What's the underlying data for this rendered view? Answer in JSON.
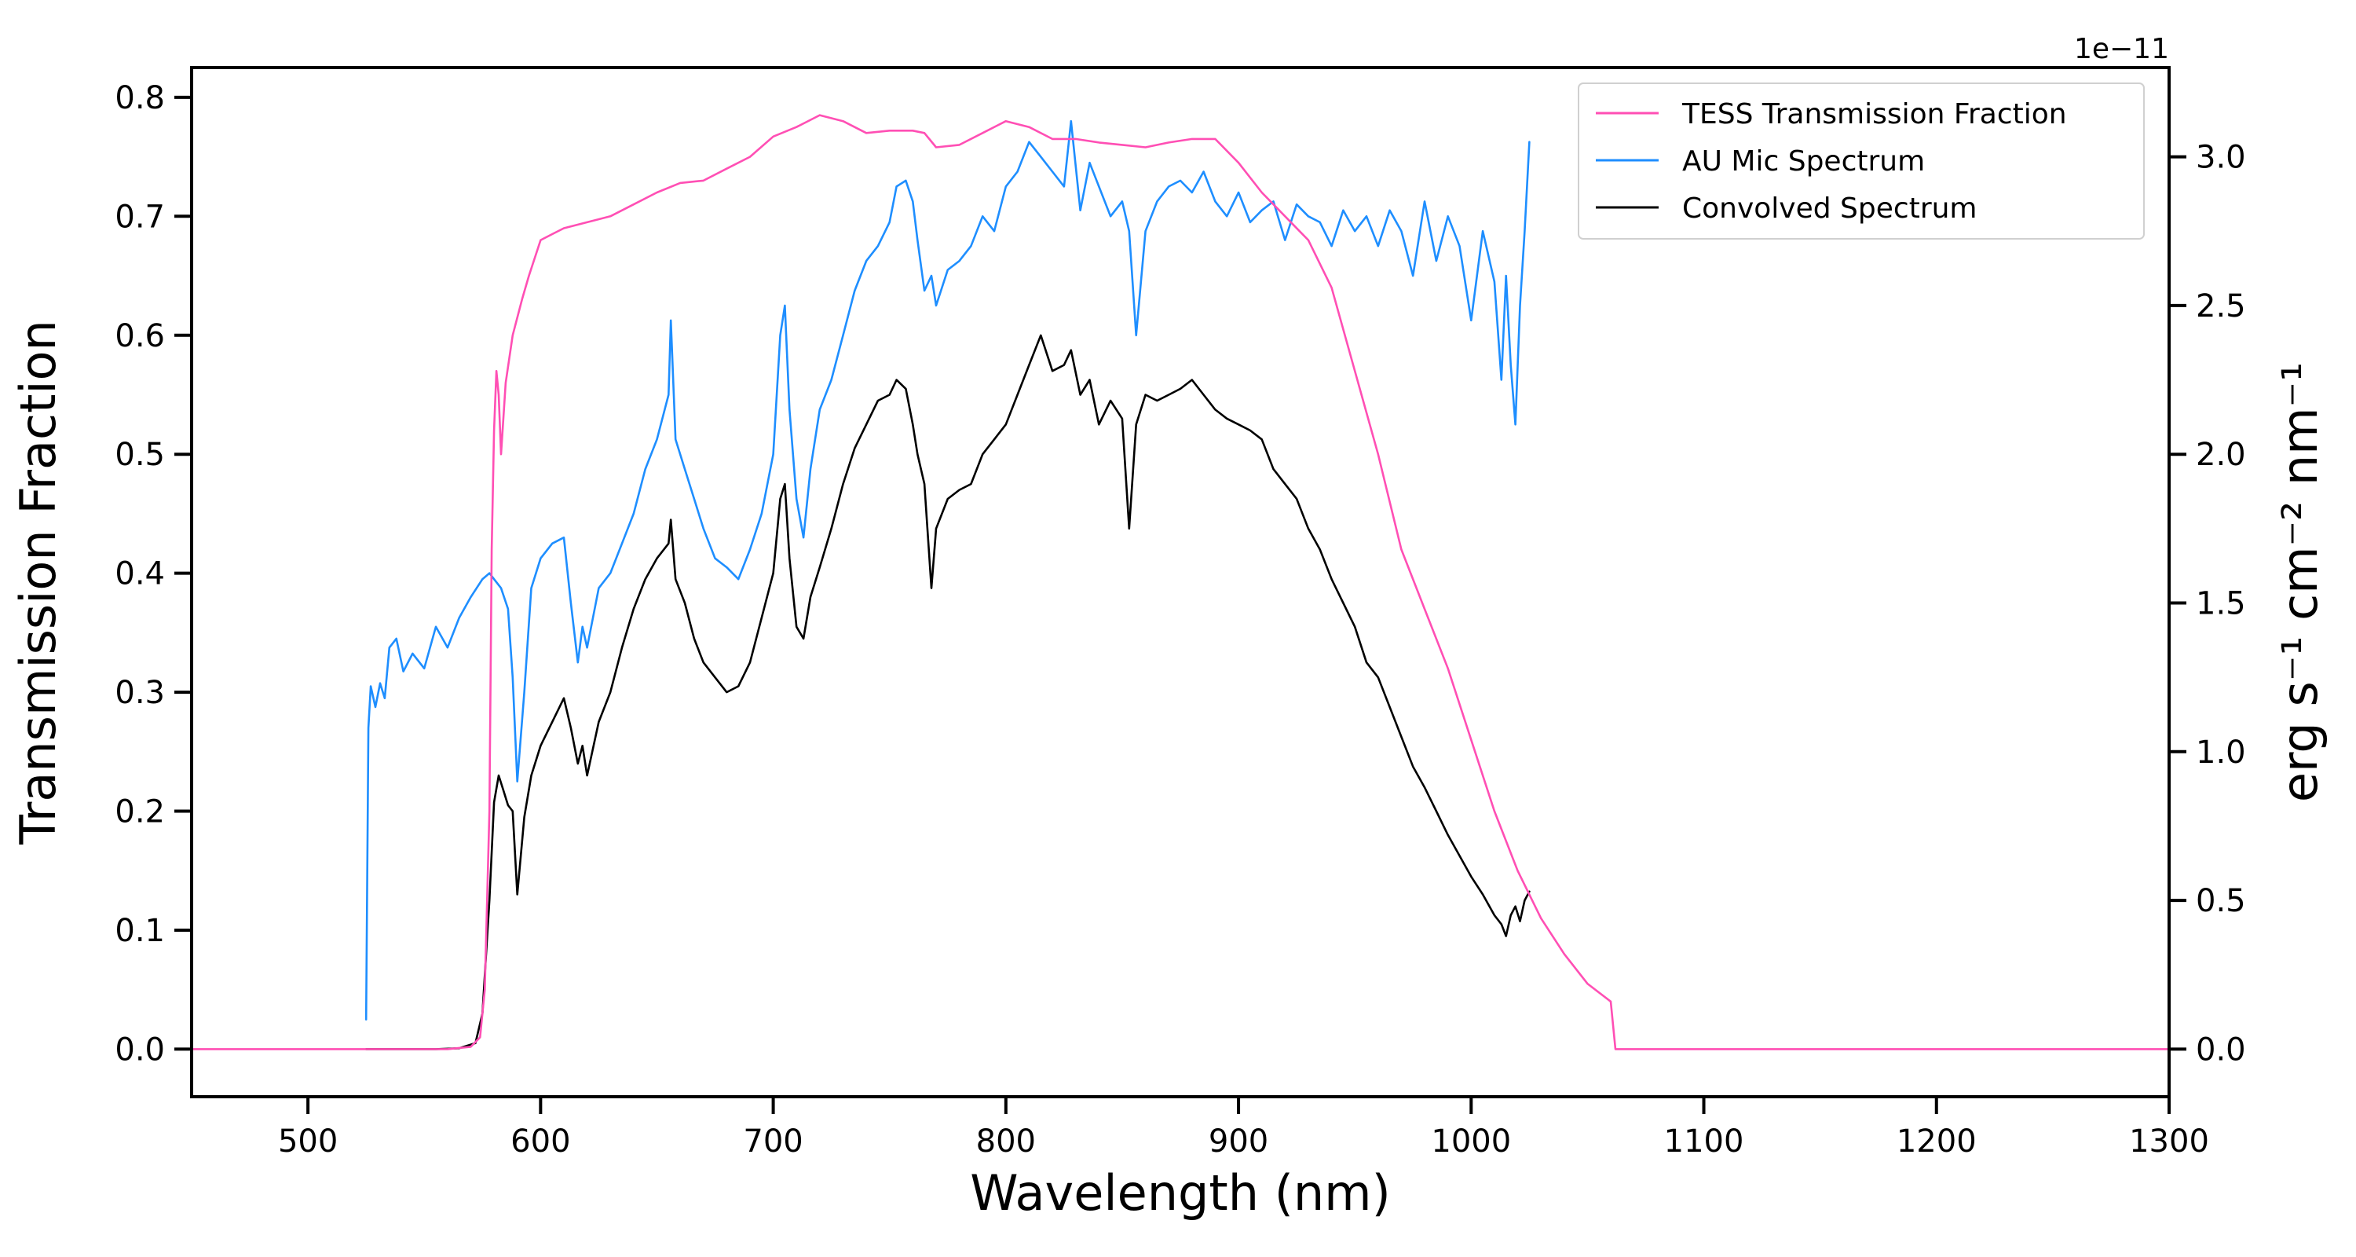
{
  "chart_data": {
    "type": "line",
    "title": "",
    "xlabel": "Wavelength (nm)",
    "ylabel_left": "Transmission Fraction",
    "ylabel_right": "erg s⁻¹ cm⁻² nm⁻¹",
    "right_axis_offset": "1e−11",
    "xlim": [
      450,
      1300
    ],
    "ylim_left": [
      -0.04,
      0.825
    ],
    "ylim_right": [
      -0.16,
      3.3
    ],
    "grid": false,
    "legend_position": "top-right",
    "xticks": [
      500,
      600,
      700,
      800,
      900,
      1000,
      1100,
      1200,
      1300
    ],
    "xtick_labels": [
      "500",
      "600",
      "700",
      "800",
      "900",
      "1000",
      "1100",
      "1200",
      "1300"
    ],
    "yticks_left": [
      0.0,
      0.1,
      0.2,
      0.3,
      0.4,
      0.5,
      0.6,
      0.7,
      0.8
    ],
    "ytick_labels_left": [
      "0.0",
      "0.1",
      "0.2",
      "0.3",
      "0.4",
      "0.5",
      "0.6",
      "0.7",
      "0.8"
    ],
    "yticks_right": [
      0.0,
      0.5,
      1.0,
      1.5,
      2.0,
      2.5,
      3.0
    ],
    "ytick_labels_right": [
      "0.0",
      "0.5",
      "1.0",
      "1.5",
      "2.0",
      "2.5",
      "3.0"
    ],
    "series": [
      {
        "name": "TESS Transmission Fraction",
        "axis": "left",
        "color": "#ff4fb4",
        "x": [
          450,
          520,
          560,
          570,
          574,
          576,
          578,
          579,
          580,
          581,
          582,
          583,
          585,
          588,
          592,
          595,
          600,
          605,
          610,
          620,
          630,
          640,
          650,
          660,
          670,
          680,
          690,
          700,
          710,
          720,
          730,
          740,
          750,
          760,
          765,
          770,
          780,
          790,
          800,
          810,
          820,
          830,
          840,
          850,
          860,
          870,
          880,
          890,
          900,
          910,
          920,
          930,
          940,
          950,
          960,
          970,
          980,
          990,
          1000,
          1010,
          1020,
          1030,
          1040,
          1050,
          1060,
          1062,
          1100,
          1200,
          1300
        ],
        "y": [
          0.0,
          0.0,
          0.0,
          0.002,
          0.01,
          0.05,
          0.2,
          0.42,
          0.52,
          0.57,
          0.55,
          0.5,
          0.56,
          0.6,
          0.63,
          0.65,
          0.68,
          0.685,
          0.69,
          0.695,
          0.7,
          0.71,
          0.72,
          0.728,
          0.73,
          0.74,
          0.75,
          0.767,
          0.775,
          0.785,
          0.78,
          0.77,
          0.772,
          0.772,
          0.77,
          0.758,
          0.76,
          0.77,
          0.78,
          0.775,
          0.765,
          0.765,
          0.762,
          0.76,
          0.758,
          0.762,
          0.765,
          0.765,
          0.745,
          0.72,
          0.7,
          0.68,
          0.64,
          0.57,
          0.5,
          0.42,
          0.37,
          0.32,
          0.26,
          0.2,
          0.15,
          0.11,
          0.08,
          0.055,
          0.04,
          0.0,
          0.0,
          0.0,
          0.0
        ]
      },
      {
        "name": "AU Mic Spectrum",
        "axis": "right",
        "color": "#1e8eff",
        "x": [
          525,
          526,
          527,
          529,
          531,
          533,
          535,
          538,
          541,
          545,
          550,
          555,
          560,
          565,
          570,
          575,
          578,
          580,
          583,
          586,
          588,
          590,
          593,
          596,
          600,
          605,
          610,
          613,
          616,
          618,
          620,
          625,
          630,
          635,
          640,
          645,
          650,
          655,
          656,
          658,
          662,
          666,
          670,
          675,
          680,
          685,
          690,
          695,
          700,
          703,
          705,
          707,
          710,
          713,
          716,
          720,
          725,
          730,
          735,
          740,
          745,
          750,
          753,
          757,
          760,
          762,
          765,
          768,
          770,
          775,
          780,
          785,
          790,
          795,
          800,
          805,
          810,
          815,
          820,
          825,
          828,
          832,
          836,
          840,
          845,
          850,
          853,
          856,
          860,
          865,
          870,
          875,
          880,
          885,
          890,
          895,
          900,
          905,
          910,
          915,
          920,
          925,
          930,
          935,
          940,
          945,
          950,
          955,
          960,
          965,
          970,
          975,
          980,
          985,
          990,
          995,
          1000,
          1005,
          1010,
          1013,
          1015,
          1017,
          1019,
          1021,
          1023,
          1025
        ],
        "y": [
          0.1,
          1.08,
          1.22,
          1.15,
          1.23,
          1.18,
          1.35,
          1.38,
          1.27,
          1.33,
          1.28,
          1.42,
          1.35,
          1.45,
          1.52,
          1.58,
          1.6,
          1.58,
          1.55,
          1.48,
          1.25,
          0.9,
          1.2,
          1.55,
          1.65,
          1.7,
          1.72,
          1.5,
          1.3,
          1.42,
          1.35,
          1.55,
          1.6,
          1.7,
          1.8,
          1.95,
          2.05,
          2.2,
          2.45,
          2.05,
          1.95,
          1.85,
          1.75,
          1.65,
          1.62,
          1.58,
          1.68,
          1.8,
          2.0,
          2.4,
          2.5,
          2.15,
          1.85,
          1.72,
          1.95,
          2.15,
          2.25,
          2.4,
          2.55,
          2.65,
          2.7,
          2.78,
          2.9,
          2.92,
          2.85,
          2.72,
          2.55,
          2.6,
          2.5,
          2.62,
          2.65,
          2.7,
          2.8,
          2.75,
          2.9,
          2.95,
          3.05,
          3.0,
          2.95,
          2.9,
          3.12,
          2.82,
          2.98,
          2.9,
          2.8,
          2.85,
          2.75,
          2.4,
          2.75,
          2.85,
          2.9,
          2.92,
          2.88,
          2.95,
          2.85,
          2.8,
          2.88,
          2.78,
          2.82,
          2.85,
          2.72,
          2.84,
          2.8,
          2.78,
          2.7,
          2.82,
          2.75,
          2.8,
          2.7,
          2.82,
          2.75,
          2.6,
          2.85,
          2.65,
          2.8,
          2.7,
          2.45,
          2.75,
          2.58,
          2.25,
          2.6,
          2.3,
          2.1,
          2.5,
          2.75,
          3.05
        ]
      },
      {
        "name": "Convolved Spectrum",
        "axis": "right",
        "color": "#000000",
        "x": [
          525,
          540,
          555,
          565,
          572,
          575,
          578,
          580,
          582,
          584,
          586,
          588,
          590,
          593,
          596,
          600,
          605,
          610,
          613,
          616,
          618,
          620,
          625,
          630,
          635,
          640,
          645,
          650,
          655,
          656,
          658,
          662,
          666,
          670,
          675,
          680,
          685,
          690,
          695,
          700,
          703,
          705,
          707,
          710,
          713,
          716,
          720,
          725,
          730,
          735,
          740,
          745,
          750,
          753,
          757,
          760,
          762,
          765,
          768,
          770,
          775,
          780,
          785,
          790,
          795,
          800,
          805,
          810,
          815,
          820,
          825,
          828,
          832,
          836,
          840,
          845,
          850,
          853,
          856,
          860,
          865,
          870,
          875,
          880,
          885,
          890,
          895,
          900,
          905,
          910,
          915,
          920,
          925,
          930,
          935,
          940,
          945,
          950,
          955,
          960,
          965,
          970,
          975,
          980,
          985,
          990,
          995,
          1000,
          1005,
          1010,
          1013,
          1015,
          1017,
          1019,
          1021,
          1023,
          1025
        ],
        "y": [
          0.0,
          0.0,
          0.0,
          0.003,
          0.02,
          0.12,
          0.5,
          0.83,
          0.92,
          0.87,
          0.82,
          0.8,
          0.52,
          0.78,
          0.92,
          1.02,
          1.1,
          1.18,
          1.08,
          0.96,
          1.02,
          0.92,
          1.1,
          1.2,
          1.35,
          1.48,
          1.58,
          1.65,
          1.7,
          1.78,
          1.58,
          1.5,
          1.38,
          1.3,
          1.25,
          1.2,
          1.22,
          1.3,
          1.45,
          1.6,
          1.85,
          1.9,
          1.65,
          1.42,
          1.38,
          1.52,
          1.62,
          1.75,
          1.9,
          2.02,
          2.1,
          2.18,
          2.2,
          2.25,
          2.22,
          2.1,
          2.0,
          1.9,
          1.55,
          1.75,
          1.85,
          1.88,
          1.9,
          2.0,
          2.05,
          2.1,
          2.2,
          2.3,
          2.4,
          2.28,
          2.3,
          2.35,
          2.2,
          2.25,
          2.1,
          2.18,
          2.12,
          1.75,
          2.1,
          2.2,
          2.18,
          2.2,
          2.22,
          2.25,
          2.2,
          2.15,
          2.12,
          2.1,
          2.08,
          2.05,
          1.95,
          1.9,
          1.85,
          1.75,
          1.68,
          1.58,
          1.5,
          1.42,
          1.3,
          1.25,
          1.15,
          1.05,
          0.95,
          0.88,
          0.8,
          0.72,
          0.65,
          0.58,
          0.52,
          0.45,
          0.42,
          0.38,
          0.45,
          0.48,
          0.43,
          0.5,
          0.53
        ]
      }
    ]
  }
}
